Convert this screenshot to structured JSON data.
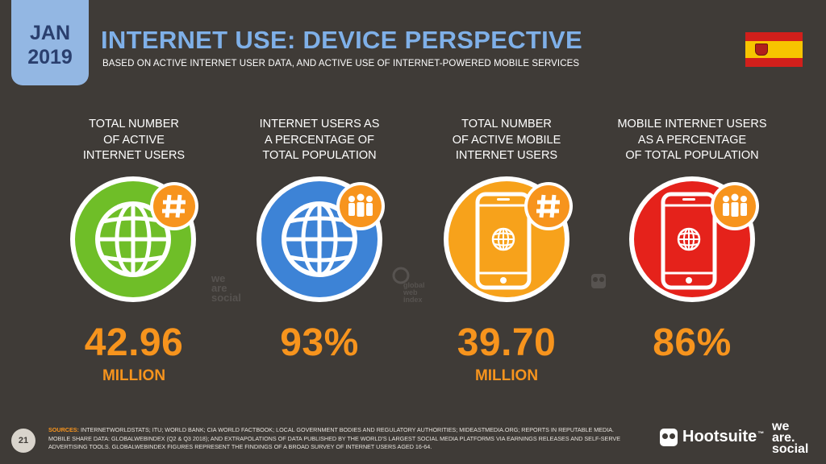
{
  "header": {
    "date_month": "JAN",
    "date_year": "2019",
    "title": "INTERNET USE: DEVICE PERSPECTIVE",
    "subtitle": "BASED ON ACTIVE INTERNET USER DATA, AND ACTIVE USE OF INTERNET-POWERED MOBILE SERVICES",
    "flag_icon": "spain-flag-icon"
  },
  "colors": {
    "green": "#6fbe28",
    "blue": "#3d83d6",
    "orange": "#f7a21b",
    "red": "#e5221b",
    "accent": "#f7941d",
    "title_blue": "#7fb0e8"
  },
  "stats": [
    {
      "label": [
        "TOTAL NUMBER",
        "OF ACTIVE",
        "INTERNET USERS"
      ],
      "value": "42.96",
      "unit": "MILLION",
      "icon": "globe-icon",
      "badge_icon": "hash-icon"
    },
    {
      "label": [
        "INTERNET USERS AS",
        "A PERCENTAGE OF",
        "TOTAL POPULATION"
      ],
      "value": "93%",
      "unit": "",
      "icon": "globe-icon",
      "badge_icon": "people-icon"
    },
    {
      "label": [
        "TOTAL NUMBER",
        "OF ACTIVE MOBILE",
        "INTERNET USERS"
      ],
      "value": "39.70",
      "unit": "MILLION",
      "icon": "mobile-globe-icon",
      "badge_icon": "hash-icon"
    },
    {
      "label": [
        "MOBILE INTERNET USERS",
        "AS A PERCENTAGE",
        "OF TOTAL POPULATION"
      ],
      "value": "86%",
      "unit": "",
      "icon": "mobile-globe-icon",
      "badge_icon": "people-icon"
    }
  ],
  "watermarks": {
    "we_are_social": [
      "we",
      "are",
      "social"
    ],
    "gwi": [
      "global",
      "web",
      "index"
    ]
  },
  "footer": {
    "page_number": "21",
    "sources_heading": "SOURCES:",
    "sources_text": "INTERNETWORLDSTATS; ITU; WORLD BANK; CIA WORLD FACTBOOK; LOCAL GOVERNMENT BODIES AND REGULATORY AUTHORITIES; MIDEASTMEDIA.ORG; REPORTS IN REPUTABLE MEDIA. MOBILE SHARE DATA: GLOBALWEBINDEX (Q2 & Q3 2018); AND EXTRAPOLATIONS OF DATA PUBLISHED BY THE WORLD'S LARGEST SOCIAL MEDIA PLATFORMS VIA EARNINGS RELEASES AND SELF-SERVE ADVERTISING TOOLS. GLOBALWEBINDEX FIGURES REPRESENT THE FINDINGS OF A BROAD SURVEY OF INTERNET USERS AGED 16-64.",
    "hootsuite_label": "Hootsuite",
    "tm": "™",
    "was_lines": [
      "we",
      "are.",
      "social"
    ]
  }
}
